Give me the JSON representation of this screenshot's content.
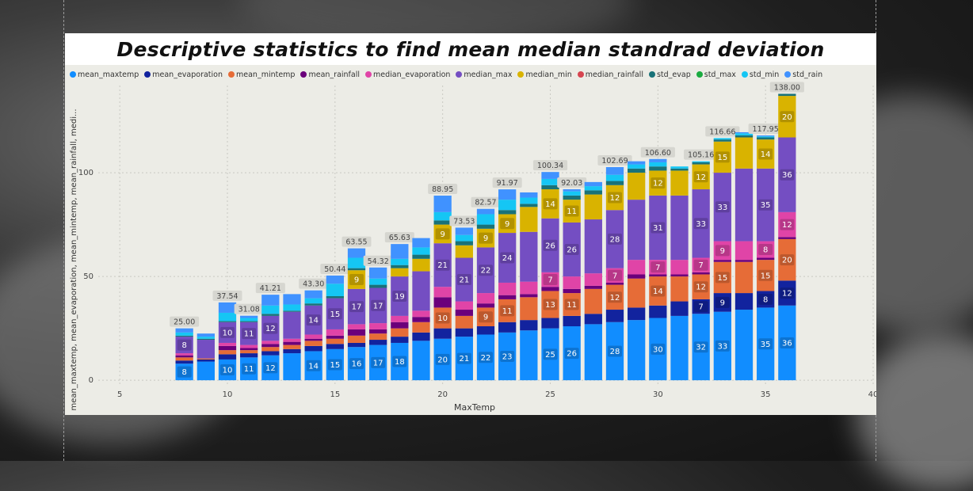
{
  "title": "Descriptive statistics to find mean median standrad deviation",
  "chart_data": {
    "type": "bar",
    "stacked": true,
    "xlabel": "MaxTemp",
    "ylabel": "mean_maxtemp, mean_evaporation, mean_mintemp, mean_rainfall, medi...",
    "xlim": [
      4,
      40
    ],
    "ylim": [
      -3,
      142
    ],
    "x_ticks": [
      5,
      10,
      15,
      20,
      25,
      30,
      35,
      40
    ],
    "y_ticks": [
      0,
      50,
      100
    ],
    "grid": true,
    "legend_position": "top",
    "series": [
      {
        "name": "mean_maxtemp",
        "color": "#118DFF"
      },
      {
        "name": "mean_evaporation",
        "color": "#12239E"
      },
      {
        "name": "mean_mintemp",
        "color": "#E66C37"
      },
      {
        "name": "mean_rainfall",
        "color": "#6B007B"
      },
      {
        "name": "median_evaporation",
        "color": "#E044A7"
      },
      {
        "name": "median_max",
        "color": "#744EC2"
      },
      {
        "name": "median_min",
        "color": "#D9B300"
      },
      {
        "name": "median_rainfall",
        "color": "#D64550"
      },
      {
        "name": "std_evap",
        "color": "#197278"
      },
      {
        "name": "std_max",
        "color": "#1AAB40"
      },
      {
        "name": "std_min",
        "color": "#15C6F4"
      },
      {
        "name": "std_rain",
        "color": "#4092FF"
      }
    ],
    "bars": [
      {
        "x": 8,
        "total": 25.0,
        "labeled": true,
        "v": [
          8,
          1.5,
          1.5,
          1,
          1,
          8,
          0,
          0,
          0.5,
          0,
          1.5,
          2
        ]
      },
      {
        "x": 9,
        "total": 22.5,
        "labeled": false,
        "v": [
          9,
          1,
          0.5,
          0,
          0,
          9,
          0,
          0,
          0.5,
          0,
          1,
          1.5
        ]
      },
      {
        "x": 10,
        "total": 37.54,
        "labeled": true,
        "v": [
          10,
          2.5,
          2,
          2,
          1.5,
          10,
          0,
          0,
          0.5,
          0,
          4,
          5
        ]
      },
      {
        "x": 11,
        "total": 31.08,
        "labeled": true,
        "v": [
          11,
          2,
          1.5,
          1,
          1.5,
          11,
          0,
          0,
          0.5,
          0,
          1.5,
          1.08
        ]
      },
      {
        "x": 12,
        "total": 41.21,
        "labeled": true,
        "v": [
          12,
          2,
          2,
          1.5,
          1.5,
          12,
          0,
          0,
          1,
          0,
          4,
          5.21
        ]
      },
      {
        "x": 13,
        "total": 41.5,
        "labeled": false,
        "v": [
          13,
          2,
          2,
          1.5,
          1.5,
          13,
          0,
          0,
          0.5,
          0,
          3,
          5
        ]
      },
      {
        "x": 14,
        "total": 43.3,
        "labeled": true,
        "v": [
          14,
          2.5,
          2.5,
          1,
          2,
          14,
          0,
          0,
          1,
          0,
          2.5,
          3.8
        ]
      },
      {
        "x": 15,
        "total": 50.44,
        "labeled": true,
        "v": [
          15,
          2.5,
          2.5,
          1.5,
          3,
          15,
          0,
          0,
          1,
          0,
          6,
          3.94
        ]
      },
      {
        "x": 16,
        "total": 63.55,
        "labeled": true,
        "v": [
          16,
          2,
          3.5,
          3,
          2.5,
          17,
          9,
          0,
          1,
          0,
          5,
          4.55
        ]
      },
      {
        "x": 17,
        "total": 54.32,
        "labeled": true,
        "v": [
          17,
          2.5,
          3,
          2,
          3,
          17,
          0,
          0,
          1.5,
          0,
          3,
          5.32
        ]
      },
      {
        "x": 18,
        "total": 65.63,
        "labeled": true,
        "v": [
          18,
          3,
          4,
          3,
          3,
          19,
          4,
          0,
          1.5,
          0,
          3,
          7.13
        ]
      },
      {
        "x": 19,
        "total": 68.5,
        "labeled": false,
        "v": [
          19,
          4,
          5,
          2.5,
          3,
          19,
          6,
          0,
          2,
          0,
          3.5,
          4.5
        ]
      },
      {
        "x": 20,
        "total": 88.95,
        "labeled": true,
        "v": [
          20,
          5,
          10,
          5,
          5,
          21,
          9,
          0,
          2,
          0,
          4,
          7.95
        ]
      },
      {
        "x": 21,
        "total": 73.53,
        "labeled": true,
        "v": [
          21,
          4,
          6,
          3,
          4,
          21,
          6,
          0,
          2,
          0,
          3,
          3.53
        ]
      },
      {
        "x": 22,
        "total": 82.57,
        "labeled": true,
        "v": [
          22,
          4,
          9,
          2,
          5,
          22,
          9,
          0,
          2,
          0,
          5,
          2.57
        ]
      },
      {
        "x": 23,
        "total": 91.97,
        "labeled": true,
        "v": [
          23,
          5,
          11,
          2,
          6,
          24,
          9,
          0,
          2,
          0,
          5,
          4.97
        ]
      },
      {
        "x": 24,
        "total": 90.5,
        "labeled": false,
        "v": [
          24,
          5,
          11,
          1.5,
          6,
          24,
          12,
          0,
          1.5,
          0,
          3,
          2.5
        ]
      },
      {
        "x": 25,
        "total": 100.34,
        "labeled": true,
        "v": [
          25,
          5,
          13,
          2,
          7,
          26,
          14,
          0,
          2,
          0,
          3,
          3.34
        ]
      },
      {
        "x": 26,
        "total": 92.03,
        "labeled": true,
        "v": [
          26,
          5,
          11,
          2,
          6,
          26,
          11,
          0,
          2,
          0,
          2,
          1.03
        ]
      },
      {
        "x": 27,
        "total": 95.5,
        "labeled": false,
        "v": [
          27,
          5,
          12,
          1.5,
          6,
          26,
          12,
          0,
          2,
          0,
          2,
          2
        ]
      },
      {
        "x": 28,
        "total": 102.69,
        "labeled": true,
        "v": [
          28,
          6,
          12,
          1,
          7,
          28,
          12,
          0,
          2,
          0,
          3,
          3.69
        ]
      },
      {
        "x": 29,
        "total": 105.5,
        "labeled": false,
        "v": [
          29,
          6,
          14,
          2,
          7,
          29,
          13,
          0,
          2,
          0,
          2,
          1.5
        ]
      },
      {
        "x": 30,
        "total": 106.6,
        "labeled": true,
        "v": [
          30,
          6,
          14,
          1,
          7,
          31,
          12,
          0,
          2,
          0,
          2,
          1.6
        ]
      },
      {
        "x": 31,
        "total": 103.0,
        "labeled": false,
        "v": [
          31,
          7,
          12,
          1,
          7,
          31,
          12,
          0,
          1,
          0,
          1,
          0
        ]
      },
      {
        "x": 32,
        "total": 105.16,
        "labeled": true,
        "v": [
          32,
          7,
          12,
          1,
          7,
          33,
          12,
          0,
          1,
          0,
          0.5,
          0
        ]
      },
      {
        "x": 33,
        "total": 116.66,
        "labeled": true,
        "v": [
          33,
          9,
          15,
          1,
          9,
          33,
          15,
          0,
          1,
          0,
          0.66,
          0
        ]
      },
      {
        "x": 34,
        "total": 119.5,
        "labeled": false,
        "v": [
          34,
          8,
          15,
          1,
          9,
          35,
          15,
          0,
          1,
          0,
          1,
          0.5
        ]
      },
      {
        "x": 35,
        "total": 117.95,
        "labeled": true,
        "v": [
          35,
          8,
          15,
          1,
          8,
          35,
          14,
          0,
          1,
          0,
          0.5,
          0.45
        ]
      },
      {
        "x": 36,
        "total": 138.0,
        "labeled": true,
        "v": [
          36,
          12,
          20,
          1,
          12,
          36,
          20,
          0,
          1,
          0,
          0,
          0
        ]
      }
    ]
  }
}
